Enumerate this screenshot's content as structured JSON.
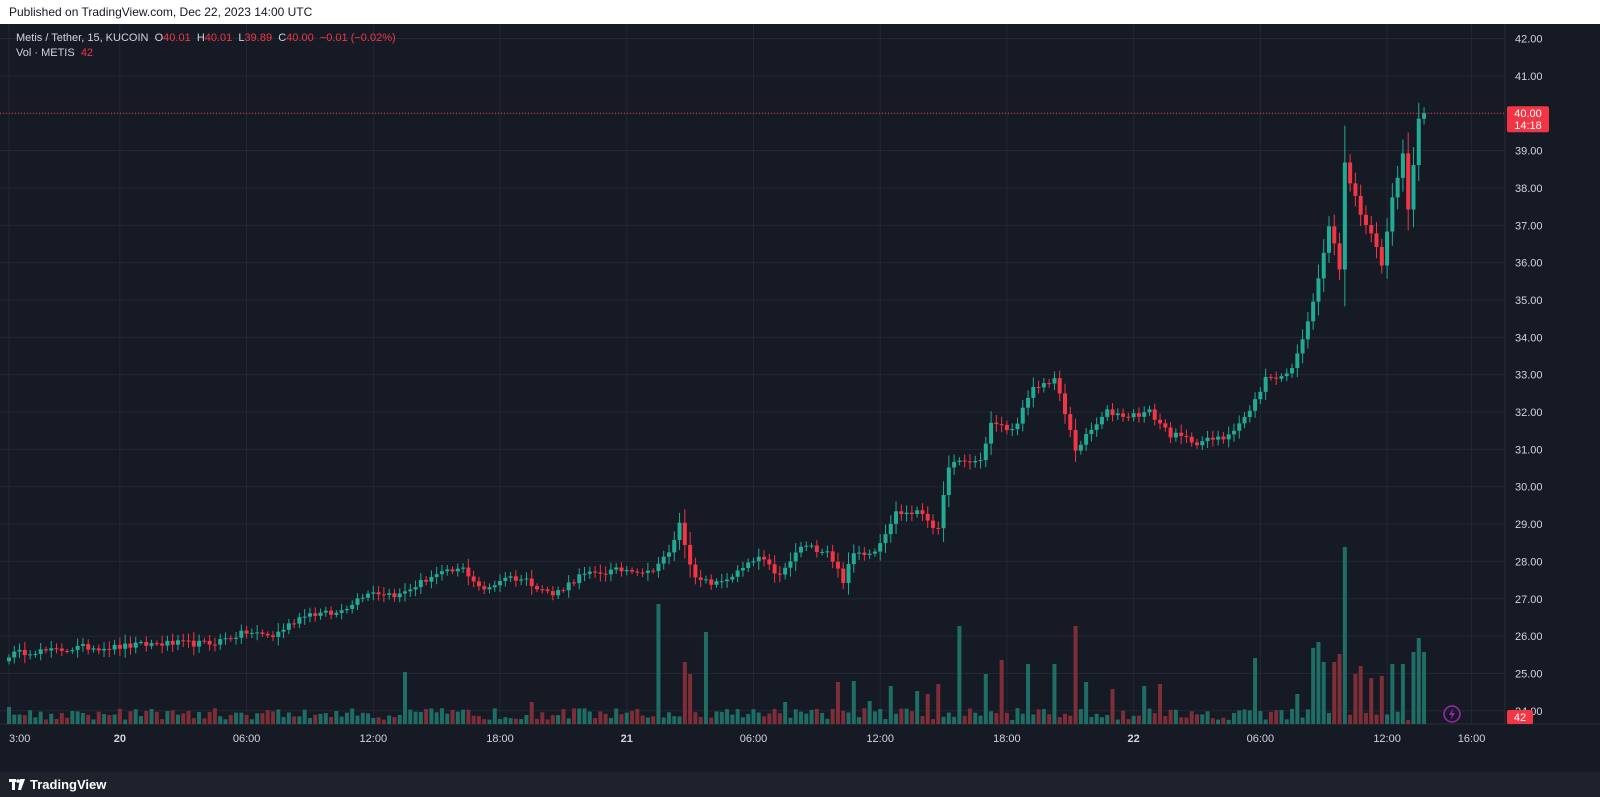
{
  "header": {
    "published": "Published on TradingView.com, Dec 22, 2023 14:00 UTC"
  },
  "footer": {
    "brand": "TradingView"
  },
  "legend": {
    "symbol": "Metis / Tether, 15, KUCOIN",
    "o_label": "O",
    "o": "40.01",
    "h_label": "H",
    "h": "40.01",
    "l_label": "L",
    "l": "39.89",
    "c_label": "C",
    "c": "40.00",
    "change": "−0.01 (−0.02%)",
    "vol_label": "Vol · METIS",
    "vol": "42"
  },
  "price_tag": {
    "price": "40.00",
    "countdown": "14:18"
  },
  "vol_tag": "42",
  "colors": {
    "up": "#22ab94",
    "down": "#f23645",
    "up_vol": "#1e6e66",
    "down_vol": "#7d2e37",
    "background": "#161a25",
    "grid": "#232734",
    "text": "#d1d4dc"
  },
  "chart_data": {
    "type": "candlestick",
    "symbol": "Metis / Tether",
    "interval": "15",
    "exchange": "KUCOIN",
    "ylim": [
      23.5,
      42.3
    ],
    "y_ticks": [
      "42.00",
      "41.00",
      "40.00",
      "39.00",
      "38.00",
      "37.00",
      "36.00",
      "35.00",
      "34.00",
      "33.00",
      "32.00",
      "31.00",
      "30.00",
      "29.00",
      "28.00",
      "27.00",
      "26.00",
      "25.00",
      "24.00"
    ],
    "x_ticks": [
      {
        "label": "3:00",
        "t": 0
      },
      {
        "label": "20",
        "t": 21
      },
      {
        "label": "06:00",
        "t": 45
      },
      {
        "label": "12:00",
        "t": 69
      },
      {
        "label": "18:00",
        "t": 93
      },
      {
        "label": "21",
        "t": 117
      },
      {
        "label": "06:00",
        "t": 141
      },
      {
        "label": "12:00",
        "t": 165
      },
      {
        "label": "18:00",
        "t": 189
      },
      {
        "label": "22",
        "t": 213
      },
      {
        "label": "06:00",
        "t": 237
      },
      {
        "label": "12:00",
        "t": 261
      },
      {
        "label": "16:00",
        "t": 277
      }
    ],
    "last_price": 40.0,
    "anchors": [
      {
        "t": 0,
        "p": 25.5
      },
      {
        "t": 4,
        "p": 25.6
      },
      {
        "t": 8,
        "p": 25.6
      },
      {
        "t": 14,
        "p": 25.7
      },
      {
        "t": 20,
        "p": 25.7
      },
      {
        "t": 28,
        "p": 25.8
      },
      {
        "t": 38,
        "p": 25.8
      },
      {
        "t": 45,
        "p": 26.1
      },
      {
        "t": 50,
        "p": 26.0
      },
      {
        "t": 56,
        "p": 26.6
      },
      {
        "t": 62,
        "p": 26.6
      },
      {
        "t": 68,
        "p": 27.2
      },
      {
        "t": 74,
        "p": 27.1
      },
      {
        "t": 80,
        "p": 27.6
      },
      {
        "t": 86,
        "p": 27.8
      },
      {
        "t": 90,
        "p": 27.2
      },
      {
        "t": 94,
        "p": 27.6
      },
      {
        "t": 98,
        "p": 27.5
      },
      {
        "t": 103,
        "p": 27.1
      },
      {
        "t": 108,
        "p": 27.6
      },
      {
        "t": 112,
        "p": 27.7
      },
      {
        "t": 118,
        "p": 27.8
      },
      {
        "t": 121,
        "p": 27.7
      },
      {
        "t": 125,
        "p": 28.2
      },
      {
        "t": 127,
        "p": 29.0
      },
      {
        "t": 130,
        "p": 27.5
      },
      {
        "t": 134,
        "p": 27.4
      },
      {
        "t": 138,
        "p": 27.7
      },
      {
        "t": 142,
        "p": 28.1
      },
      {
        "t": 146,
        "p": 27.6
      },
      {
        "t": 150,
        "p": 28.4
      },
      {
        "t": 155,
        "p": 28.3
      },
      {
        "t": 158,
        "p": 27.5
      },
      {
        "t": 160,
        "p": 28.2
      },
      {
        "t": 164,
        "p": 28.3
      },
      {
        "t": 168,
        "p": 29.3
      },
      {
        "t": 173,
        "p": 29.3
      },
      {
        "t": 176,
        "p": 28.8
      },
      {
        "t": 178,
        "p": 30.6
      },
      {
        "t": 184,
        "p": 30.7
      },
      {
        "t": 186,
        "p": 31.7
      },
      {
        "t": 190,
        "p": 31.5
      },
      {
        "t": 194,
        "p": 32.6
      },
      {
        "t": 198,
        "p": 32.9
      },
      {
        "t": 202,
        "p": 31.0
      },
      {
        "t": 205,
        "p": 31.5
      },
      {
        "t": 208,
        "p": 32.0
      },
      {
        "t": 212,
        "p": 31.9
      },
      {
        "t": 216,
        "p": 32.0
      },
      {
        "t": 220,
        "p": 31.4
      },
      {
        "t": 225,
        "p": 31.2
      },
      {
        "t": 230,
        "p": 31.3
      },
      {
        "t": 235,
        "p": 32.0
      },
      {
        "t": 238,
        "p": 32.9
      },
      {
        "t": 242,
        "p": 33.0
      },
      {
        "t": 244,
        "p": 33.5
      },
      {
        "t": 247,
        "p": 35.0
      },
      {
        "t": 249,
        "p": 36.2
      },
      {
        "t": 250,
        "p": 37.0
      },
      {
        "t": 252,
        "p": 35.9
      },
      {
        "t": 253,
        "p": 38.6
      },
      {
        "t": 256,
        "p": 37.3
      },
      {
        "t": 259,
        "p": 36.4
      },
      {
        "t": 260,
        "p": 35.9
      },
      {
        "t": 262,
        "p": 37.8
      },
      {
        "t": 264,
        "p": 38.9
      },
      {
        "t": 265,
        "p": 37.5
      },
      {
        "t": 267,
        "p": 39.9
      },
      {
        "t": 268,
        "p": 40.0
      }
    ],
    "volume_spikes": [
      {
        "t": 0,
        "v": 17
      },
      {
        "t": 18,
        "v": 10
      },
      {
        "t": 30,
        "v": 13
      },
      {
        "t": 75,
        "v": 52
      },
      {
        "t": 99,
        "v": 22
      },
      {
        "t": 123,
        "v": 120
      },
      {
        "t": 128,
        "v": 62
      },
      {
        "t": 128.5,
        "v": 50
      },
      {
        "t": 132,
        "v": 92
      },
      {
        "t": 147,
        "v": 22
      },
      {
        "t": 157,
        "v": 42
      },
      {
        "t": 160,
        "v": 43
      },
      {
        "t": 163,
        "v": 23
      },
      {
        "t": 167,
        "v": 38
      },
      {
        "t": 172,
        "v": 33
      },
      {
        "t": 174,
        "v": 30
      },
      {
        "t": 176,
        "v": 40
      },
      {
        "t": 180,
        "v": 98
      },
      {
        "t": 185,
        "v": 50
      },
      {
        "t": 188,
        "v": 64
      },
      {
        "t": 193,
        "v": 60
      },
      {
        "t": 198,
        "v": 60
      },
      {
        "t": 202,
        "v": 98
      },
      {
        "t": 204,
        "v": 42
      },
      {
        "t": 209,
        "v": 35
      },
      {
        "t": 215,
        "v": 38
      },
      {
        "t": 218,
        "v": 40
      },
      {
        "t": 236,
        "v": 66
      },
      {
        "t": 244,
        "v": 30
      },
      {
        "t": 247,
        "v": 76
      },
      {
        "t": 248,
        "v": 82
      },
      {
        "t": 249,
        "v": 62
      },
      {
        "t": 251,
        "v": 62
      },
      {
        "t": 252,
        "v": 70
      },
      {
        "t": 253,
        "v": 177
      },
      {
        "t": 255,
        "v": 50
      },
      {
        "t": 256,
        "v": 58
      },
      {
        "t": 258,
        "v": 46
      },
      {
        "t": 260,
        "v": 48
      },
      {
        "t": 262,
        "v": 60
      },
      {
        "t": 264,
        "v": 60
      },
      {
        "t": 266,
        "v": 72
      },
      {
        "t": 267,
        "v": 86
      },
      {
        "t": 268,
        "v": 72
      },
      {
        "t": 269,
        "v": 2
      }
    ]
  }
}
